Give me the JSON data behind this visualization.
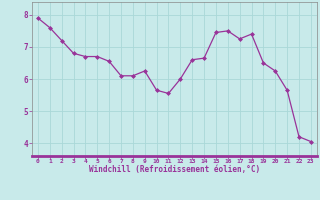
{
  "x": [
    0,
    1,
    2,
    3,
    4,
    5,
    6,
    7,
    8,
    9,
    10,
    11,
    12,
    13,
    14,
    15,
    16,
    17,
    18,
    19,
    20,
    21,
    22,
    23
  ],
  "y": [
    7.9,
    7.6,
    7.2,
    6.8,
    6.7,
    6.7,
    6.55,
    6.1,
    6.1,
    6.25,
    5.65,
    5.55,
    6.0,
    6.6,
    6.65,
    7.45,
    7.5,
    7.25,
    7.4,
    6.5,
    6.25,
    5.65,
    4.2,
    4.05
  ],
  "line_color": "#993399",
  "marker_color": "#993399",
  "bg_color": "#c8eaea",
  "grid_color": "#aad8d8",
  "xlabel": "Windchill (Refroidissement éolien,°C)",
  "xlabel_color": "#993399",
  "tick_color": "#993399",
  "ylim": [
    3.6,
    8.4
  ],
  "xlim": [
    -0.5,
    23.5
  ],
  "yticks": [
    4,
    5,
    6,
    7,
    8
  ],
  "xticks": [
    0,
    1,
    2,
    3,
    4,
    5,
    6,
    7,
    8,
    9,
    10,
    11,
    12,
    13,
    14,
    15,
    16,
    17,
    18,
    19,
    20,
    21,
    22,
    23
  ],
  "figsize": [
    3.2,
    2.0
  ],
  "dpi": 100,
  "spine_color": "#888888",
  "xaxis_bg": "#993399"
}
